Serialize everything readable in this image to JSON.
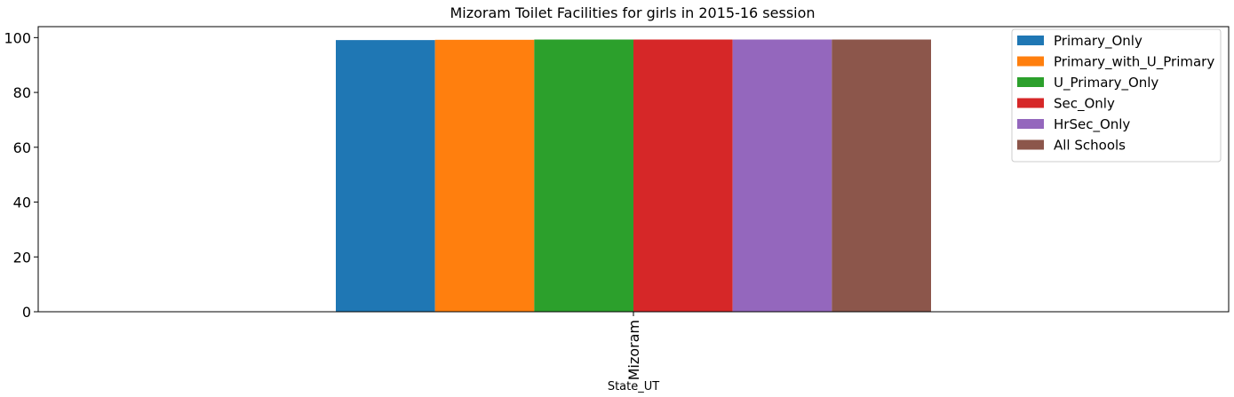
{
  "chart_data": {
    "type": "bar",
    "title": "Mizoram Toilet Facilities for girls in 2015-16 session",
    "xlabel": "State_UT",
    "ylabel": "",
    "categories": [
      "Mizoram"
    ],
    "ylim": [
      0,
      104
    ],
    "yticks": [
      0,
      20,
      40,
      60,
      80,
      100
    ],
    "grid": false,
    "legend_position": "top-right",
    "series": [
      {
        "name": "Primary_Only",
        "values": [
          99.1
        ],
        "color": "#1f77b4"
      },
      {
        "name": "Primary_with_U_Primary",
        "values": [
          99.2
        ],
        "color": "#ff7f0e"
      },
      {
        "name": "U_Primary_Only",
        "values": [
          99.3
        ],
        "color": "#2ca02c"
      },
      {
        "name": "Sec_Only",
        "values": [
          99.3
        ],
        "color": "#d62728"
      },
      {
        "name": "HrSec_Only",
        "values": [
          99.3
        ],
        "color": "#9467bd"
      },
      {
        "name": "All Schools",
        "values": [
          99.3
        ],
        "color": "#8c564b"
      }
    ]
  }
}
